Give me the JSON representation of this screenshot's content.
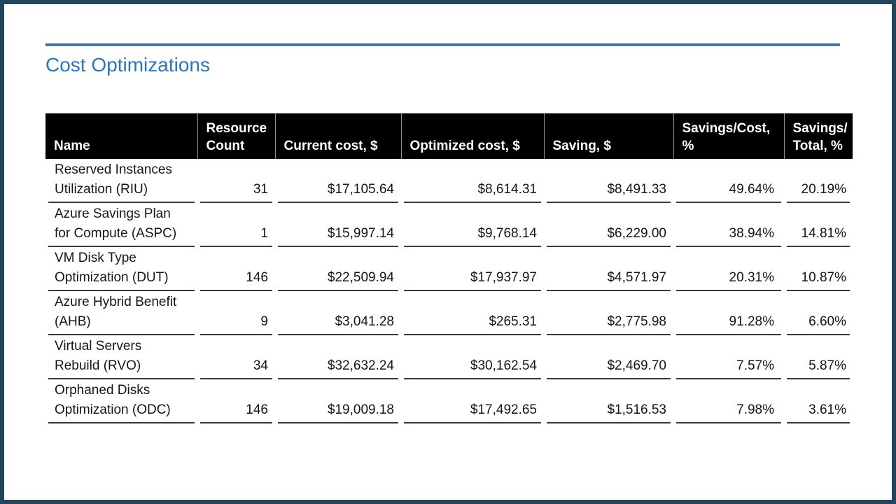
{
  "slide": {
    "title": "Cost Optimizations",
    "accent_color": "#2E75B6",
    "rule_color": "#3C78B5",
    "frame_color": "#23465C",
    "header_bg_color": "#000000",
    "header_text_color": "#FFFFFF"
  },
  "table": {
    "columns": [
      {
        "key": "name",
        "label": "Name",
        "align": "left"
      },
      {
        "key": "resource_count",
        "label": "Resource Count",
        "align": "right"
      },
      {
        "key": "current_cost",
        "label": "Current cost, $",
        "align": "right"
      },
      {
        "key": "optimized_cost",
        "label": "Optimized cost, $",
        "align": "right"
      },
      {
        "key": "saving",
        "label": "Saving, $",
        "align": "right"
      },
      {
        "key": "savings_cost_pct",
        "label": "Savings/​Cost, %",
        "align": "right"
      },
      {
        "key": "savings_total_pct",
        "label": "Savings/​Total, %",
        "align": "right"
      }
    ],
    "rows": [
      {
        "name": "Reserved Instances Utilization (RIU)",
        "resource_count": "31",
        "current_cost": "$17,105.64",
        "optimized_cost": "$8,614.31",
        "saving": "$8,491.33",
        "savings_cost_pct": "49.64%",
        "savings_total_pct": "20.19%"
      },
      {
        "name": "Azure Savings Plan for Compute (ASPC)",
        "resource_count": "1",
        "current_cost": "$15,997.14",
        "optimized_cost": "$9,768.14",
        "saving": "$6,229.00",
        "savings_cost_pct": "38.94%",
        "savings_total_pct": "14.81%"
      },
      {
        "name": "VM Disk Type Optimization (DUT)",
        "resource_count": "146",
        "current_cost": "$22,509.94",
        "optimized_cost": "$17,937.97",
        "saving": "$4,571.97",
        "savings_cost_pct": "20.31%",
        "savings_total_pct": "10.87%"
      },
      {
        "name": "Azure Hybrid Benefit (AHB)",
        "resource_count": "9",
        "current_cost": "$3,041.28",
        "optimized_cost": "$265.31",
        "saving": "$2,775.98",
        "savings_cost_pct": "91.28%",
        "savings_total_pct": "6.60%"
      },
      {
        "name": "Virtual Servers Rebuild (RVO)",
        "resource_count": "34",
        "current_cost": "$32,632.24",
        "optimized_cost": "$30,162.54",
        "saving": "$2,469.70",
        "savings_cost_pct": "7.57%",
        "savings_total_pct": "5.87%"
      },
      {
        "name": "Orphaned Disks Optimization (ODC)",
        "resource_count": "146",
        "current_cost": "$19,009.18",
        "optimized_cost": "$17,492.65",
        "saving": "$1,516.53",
        "savings_cost_pct": "7.98%",
        "savings_total_pct": "3.61%"
      }
    ]
  }
}
